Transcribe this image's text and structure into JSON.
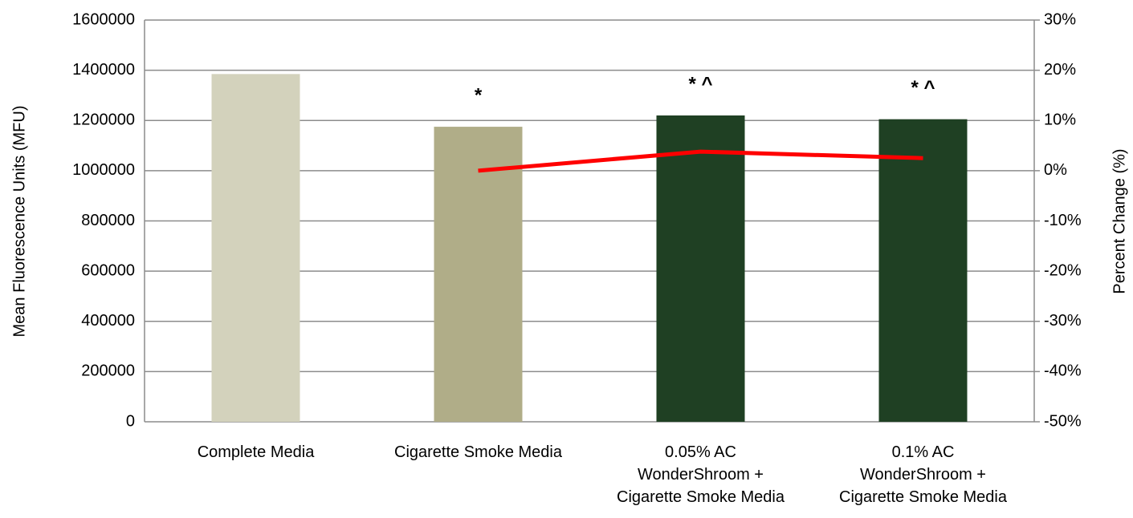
{
  "chart_data": {
    "type": "bar",
    "y_label": "Mean Fluorescence Units (MFU)",
    "y2_label": "Percent Change (%)",
    "categories": [
      "Complete Media",
      "Cigarette Smoke Media",
      "0.05% AC\nWonderShroom +\nCigarette Smoke Media",
      "0.1% AC\nWonderShroom +\nCigarette Smoke Media"
    ],
    "bar_annotations": [
      null,
      "*",
      "* ^",
      "* ^"
    ],
    "series": [
      {
        "type": "bar",
        "colors": [
          "#d3d2bc",
          "#b0ad88",
          "#1f4023",
          "#1f4023"
        ],
        "values": [
          1385000,
          1175000,
          1220000,
          1205000
        ]
      },
      {
        "type": "line",
        "axis": "y2",
        "color": "#ff0000",
        "values": [
          null,
          0,
          3.8,
          2.5
        ]
      }
    ],
    "ylim": [
      0,
      1600000
    ],
    "yticks": [
      0,
      200000,
      400000,
      600000,
      800000,
      1000000,
      1200000,
      1400000,
      1600000
    ],
    "y2lim": [
      -50,
      30
    ],
    "y2ticks": [
      {
        "value": -50,
        "label": "-50%"
      },
      {
        "value": -40,
        "label": "-40%"
      },
      {
        "value": -30,
        "label": "-30%"
      },
      {
        "value": -20,
        "label": "-20%"
      },
      {
        "value": -10,
        "label": "-10%"
      },
      {
        "value": 0,
        "label": "0%"
      },
      {
        "value": 10,
        "label": "10%"
      },
      {
        "value": 20,
        "label": "20%"
      },
      {
        "value": 30,
        "label": "30%"
      }
    ],
    "grid": true
  }
}
